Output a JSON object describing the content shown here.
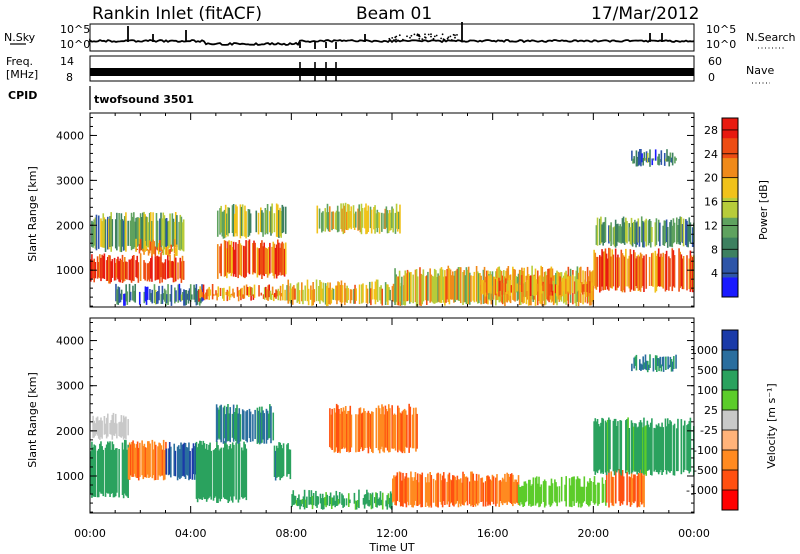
{
  "header": {
    "station": "Rankin Inlet (fitACF)",
    "beam": "Beam 01",
    "date": "17/Mar/2012"
  },
  "strips": {
    "nsky_label": "N.Sky",
    "nsearch_label": "N.Search",
    "nsky_ticks": [
      "10^5",
      "10^0"
    ],
    "freq_label_1": "Freq.",
    "freq_label_2": "[MHz]",
    "freq_ticks": [
      "14",
      "8"
    ],
    "nave_label": "Nave",
    "nave_ticks": [
      "60",
      "0"
    ],
    "cpid_label": "CPID",
    "cpid_value": "twofsound 3501"
  },
  "colors": {
    "power": [
      "#1a1aff",
      "#2e55a8",
      "#3d8060",
      "#5fa25f",
      "#b7cc3a",
      "#f1c21b",
      "#f08a1a",
      "#ee4d13",
      "#e81a10"
    ],
    "velocity": [
      "#ff0000",
      "#ff5010",
      "#ff8a20",
      "#ffb37a",
      "#c8c8c8",
      "#5ccc2a",
      "#2aa25e",
      "#2a6e9e",
      "#1a3aa8"
    ]
  },
  "chart_data": [
    {
      "type": "heatmap",
      "title": "Power",
      "xlabel": "Time UT",
      "ylabel": "Slant Range [km]",
      "x_ticks": [
        "00:00",
        "04:00",
        "08:00",
        "12:00",
        "16:00",
        "20:00",
        "00:00"
      ],
      "xlim_hours": [
        0,
        24
      ],
      "y_ticks": [
        1000,
        2000,
        3000,
        4000
      ],
      "ylim_km": [
        180,
        4500
      ],
      "colorbar": {
        "label": "Power [dB]",
        "ticks": [
          4,
          8,
          12,
          16,
          20,
          24,
          28
        ],
        "range": [
          0,
          30
        ]
      },
      "regions": [
        {
          "t0": 0.0,
          "t1": 3.7,
          "r0": 700,
          "r1": 1400,
          "level": 27
        },
        {
          "t0": 0.0,
          "t1": 3.7,
          "r0": 1400,
          "r1": 2300,
          "level": 12
        },
        {
          "t0": 1.8,
          "t1": 3.5,
          "r0": 1300,
          "r1": 1700,
          "level": 20
        },
        {
          "t0": 1.0,
          "t1": 4.5,
          "r0": 200,
          "r1": 700,
          "level": 8
        },
        {
          "t0": 4.3,
          "t1": 8.0,
          "r0": 300,
          "r1": 700,
          "level": 22
        },
        {
          "t0": 5.0,
          "t1": 7.8,
          "r0": 800,
          "r1": 1700,
          "level": 24
        },
        {
          "t0": 5.0,
          "t1": 7.8,
          "r0": 1700,
          "r1": 2500,
          "level": 14
        },
        {
          "t0": 7.8,
          "t1": 12.5,
          "r0": 200,
          "r1": 800,
          "level": 18
        },
        {
          "t0": 9.0,
          "t1": 12.3,
          "r0": 1800,
          "r1": 2500,
          "level": 16
        },
        {
          "t0": 12.0,
          "t1": 20.0,
          "r0": 200,
          "r1": 1100,
          "level": 18
        },
        {
          "t0": 15.5,
          "t1": 20.0,
          "r0": 400,
          "r1": 900,
          "level": 22
        },
        {
          "t0": 20.0,
          "t1": 24.0,
          "r0": 500,
          "r1": 1500,
          "level": 24
        },
        {
          "t0": 20.0,
          "t1": 24.0,
          "r0": 1500,
          "r1": 2200,
          "level": 10
        },
        {
          "t0": 21.5,
          "t1": 23.3,
          "r0": 3300,
          "r1": 3700,
          "level": 8
        }
      ]
    },
    {
      "type": "heatmap",
      "title": "Velocity",
      "xlabel": "Time UT",
      "ylabel": "Slant Range [km]",
      "x_ticks": [
        "00:00",
        "04:00",
        "08:00",
        "12:00",
        "16:00",
        "20:00",
        "00:00"
      ],
      "xlim_hours": [
        0,
        24
      ],
      "y_ticks": [
        1000,
        2000,
        3000,
        4000
      ],
      "ylim_km": [
        180,
        4500
      ],
      "colorbar": {
        "label": "Velocity [m s⁻¹]",
        "ticks": [
          -1000,
          -500,
          -100,
          -25,
          25,
          100,
          500,
          1000
        ],
        "range": [
          -1250,
          1250
        ]
      },
      "regions": [
        {
          "t0": 0.0,
          "t1": 1.5,
          "r0": 1800,
          "r1": 2400,
          "value": 0
        },
        {
          "t0": 0.0,
          "t1": 1.5,
          "r0": 500,
          "r1": 1800,
          "value": 300
        },
        {
          "t0": 1.5,
          "t1": 3.0,
          "r0": 900,
          "r1": 1800,
          "value": -400
        },
        {
          "t0": 3.0,
          "t1": 4.2,
          "r0": 900,
          "r1": 1800,
          "value": 1000
        },
        {
          "t0": 4.2,
          "t1": 6.2,
          "r0": 400,
          "r1": 1800,
          "value": 200
        },
        {
          "t0": 5.0,
          "t1": 7.3,
          "r0": 1700,
          "r1": 2600,
          "value": 600
        },
        {
          "t0": 7.3,
          "t1": 8.0,
          "r0": 900,
          "r1": 1800,
          "value": 400
        },
        {
          "t0": 8.0,
          "t1": 12.0,
          "r0": 250,
          "r1": 700,
          "value": 150
        },
        {
          "t0": 9.5,
          "t1": 13.0,
          "r0": 1500,
          "r1": 2600,
          "value": -450
        },
        {
          "t0": 12.0,
          "t1": 17.0,
          "r0": 300,
          "r1": 1100,
          "value": -450
        },
        {
          "t0": 17.0,
          "t1": 20.5,
          "r0": 300,
          "r1": 1000,
          "value": 60
        },
        {
          "t0": 20.5,
          "t1": 22.0,
          "r0": 300,
          "r1": 1200,
          "value": -500
        },
        {
          "t0": 20.0,
          "t1": 24.0,
          "r0": 1000,
          "r1": 2300,
          "value": 150
        },
        {
          "t0": 21.5,
          "t1": 23.3,
          "r0": 3300,
          "r1": 3700,
          "value": 600
        }
      ]
    }
  ]
}
